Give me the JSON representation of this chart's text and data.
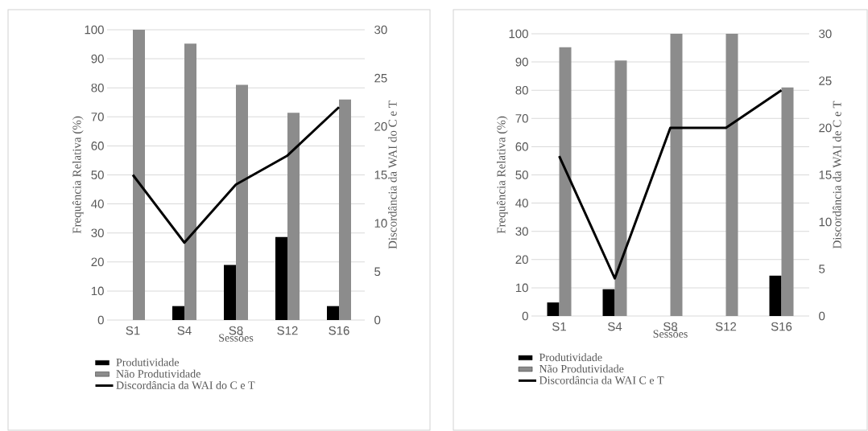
{
  "chart_data": [
    {
      "type": "bar",
      "categories": [
        "S1",
        "S4",
        "S8",
        "S12",
        "S16"
      ],
      "xlabel": "Sessões",
      "ylabel": "Frequência Relativa (%)",
      "y2label": "Discordância da WAI do C e T",
      "ylim": [
        0,
        100
      ],
      "yticks": [
        0,
        10,
        20,
        30,
        40,
        50,
        60,
        70,
        80,
        90,
        100
      ],
      "y2lim": [
        0,
        30
      ],
      "y2ticks": [
        0,
        5,
        10,
        15,
        20,
        25,
        30
      ],
      "grid": "y",
      "legend": "bottom",
      "series": [
        {
          "name": "Produtividade",
          "color": "#000000",
          "values": [
            0,
            4.8,
            19,
            28.6,
            4.8
          ]
        },
        {
          "name": "Não Produtividade",
          "color": "#8c8c8c",
          "values": [
            100,
            95.2,
            81,
            71.4,
            76
          ]
        },
        {
          "name": "Discordância da WAI do C e T",
          "type": "line",
          "axis": "y2",
          "color": "#000000",
          "values": [
            15,
            8,
            14,
            17,
            22
          ]
        }
      ]
    },
    {
      "type": "bar",
      "categories": [
        "S1",
        "S4",
        "S8",
        "S12",
        "S16"
      ],
      "xlabel": "Sessões",
      "ylabel": "Frequência Relativa (%)",
      "y2label": "Discordância da WAI de C e T",
      "ylim": [
        0,
        100
      ],
      "yticks": [
        0,
        10,
        20,
        30,
        40,
        50,
        60,
        70,
        80,
        90,
        100
      ],
      "y2lim": [
        0,
        30
      ],
      "y2ticks": [
        0,
        5,
        10,
        15,
        20,
        25,
        30
      ],
      "grid": "y",
      "legend": "bottom",
      "series": [
        {
          "name": "Produtividade",
          "color": "#000000",
          "values": [
            4.8,
            9.5,
            0,
            0,
            14.3
          ]
        },
        {
          "name": "Não Produtividade",
          "color": "#8c8c8c",
          "values": [
            95.2,
            90.5,
            100,
            100,
            81
          ]
        },
        {
          "name": "Discordância da WAI C e T",
          "type": "line",
          "axis": "y2",
          "color": "#000000",
          "values": [
            17,
            4,
            20,
            20,
            24
          ]
        }
      ]
    }
  ]
}
